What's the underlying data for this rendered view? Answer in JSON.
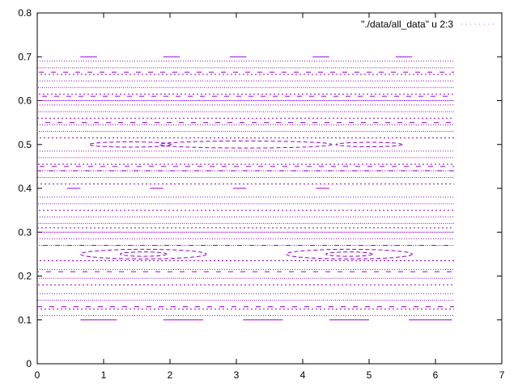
{
  "chart_data": {
    "type": "scatter",
    "legend": {
      "label": "\"./data/all_data\" u 2:3",
      "placement": "top-right"
    },
    "xlim": [
      0,
      7
    ],
    "ylim": [
      0,
      0.8
    ],
    "x_ticks": [
      "0",
      "1",
      "2",
      "3",
      "4",
      "5",
      "6",
      "7"
    ],
    "y_ticks": [
      "0",
      "0.1",
      "0.2",
      "0.3",
      "0.4",
      "0.5",
      "0.6",
      "0.7",
      "0.8"
    ],
    "grid": false,
    "series_color": "#9400d3",
    "series": [
      {
        "x_range": [
          0,
          6.28
        ],
        "horizontal_line_y_values": [
          0.6,
          0.3
        ],
        "dotted_row_y_values": [
          0.11,
          0.125,
          0.145,
          0.16,
          0.18,
          0.195,
          0.215,
          0.235,
          0.27,
          0.285,
          0.31,
          0.32,
          0.335,
          0.35,
          0.365,
          0.38,
          0.41,
          0.425,
          0.44,
          0.455,
          0.47,
          0.485,
          0.515,
          0.53,
          0.545,
          0.56,
          0.575,
          0.59,
          0.615,
          0.63,
          0.645,
          0.66,
          0.675,
          0.69
        ],
        "dashed_row_y_values": [
          0.13,
          0.21,
          0.27,
          0.45,
          0.44,
          0.55,
          0.61,
          0.665
        ],
        "short_segments": [
          {
            "x": [
              0.65,
              0.9
            ],
            "y": 0.7
          },
          {
            "x": [
              1.9,
              2.15
            ],
            "y": 0.7
          },
          {
            "x": [
              2.9,
              3.15
            ],
            "y": 0.7
          },
          {
            "x": [
              4.15,
              4.4
            ],
            "y": 0.7
          },
          {
            "x": [
              5.4,
              5.65
            ],
            "y": 0.7
          },
          {
            "x": [
              0.65,
              1.2
            ],
            "y": 0.1
          },
          {
            "x": [
              1.9,
              2.5
            ],
            "y": 0.1
          },
          {
            "x": [
              3.1,
              3.7
            ],
            "y": 0.1
          },
          {
            "x": [
              4.4,
              5.0
            ],
            "y": 0.1
          },
          {
            "x": [
              5.6,
              6.25
            ],
            "y": 0.1
          },
          {
            "x": [
              0.45,
              0.65
            ],
            "y": 0.4
          },
          {
            "x": [
              1.7,
              1.9
            ],
            "y": 0.4
          },
          {
            "x": [
              2.95,
              3.15
            ],
            "y": 0.4
          },
          {
            "x": [
              4.2,
              4.4
            ],
            "y": 0.4
          }
        ],
        "ellipses": [
          {
            "cx": 1.4,
            "cy": 0.5,
            "rx": 0.62,
            "ry": 0.006
          },
          {
            "cx": 3.14,
            "cy": 0.5,
            "rx": 1.3,
            "ry": 0.008
          },
          {
            "cx": 5.0,
            "cy": 0.5,
            "rx": 0.5,
            "ry": 0.005
          },
          {
            "cx": 1.6,
            "cy": 0.25,
            "rx": 0.95,
            "ry": 0.011
          },
          {
            "cx": 1.6,
            "cy": 0.25,
            "rx": 0.35,
            "ry": 0.005
          },
          {
            "cx": 4.7,
            "cy": 0.25,
            "rx": 0.95,
            "ry": 0.011
          },
          {
            "cx": 4.7,
            "cy": 0.25,
            "rx": 0.35,
            "ry": 0.005
          }
        ]
      }
    ]
  }
}
